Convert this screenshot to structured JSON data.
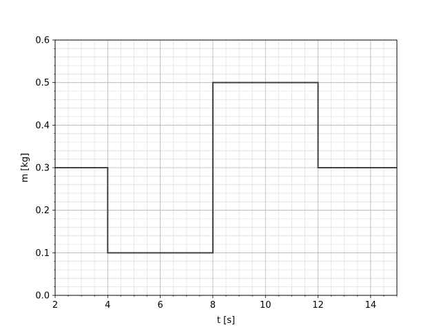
{
  "chart_data": {
    "type": "line",
    "line_style": "step",
    "title": "",
    "xlabel": "t [s]",
    "ylabel": "m [kg]",
    "xlim": [
      2,
      15
    ],
    "ylim": [
      0.0,
      0.6
    ],
    "x_ticks": [
      2,
      4,
      6,
      8,
      10,
      12,
      14
    ],
    "x_tick_labels": [
      "2",
      "4",
      "6",
      "8",
      "10",
      "12",
      "14"
    ],
    "y_ticks": [
      0.0,
      0.1,
      0.2,
      0.3,
      0.4,
      0.5,
      0.6
    ],
    "y_tick_labels": [
      "0.0",
      "0.1",
      "0.2",
      "0.3",
      "0.4",
      "0.5",
      "0.6"
    ],
    "x_minor_step": 0.5,
    "y_minor_step": 0.02,
    "grid": true,
    "minor_grid": true,
    "legend": "none",
    "series": [
      {
        "color": "#404040",
        "x": [
          2,
          4,
          4,
          8,
          8,
          12,
          12,
          15
        ],
        "y": [
          0.3,
          0.3,
          0.1,
          0.1,
          0.5,
          0.5,
          0.3,
          0.3
        ]
      }
    ],
    "colors": {
      "major_grid": "#b0b0b0",
      "minor_grid": "#e0e0e0",
      "axes": "#000000"
    }
  }
}
